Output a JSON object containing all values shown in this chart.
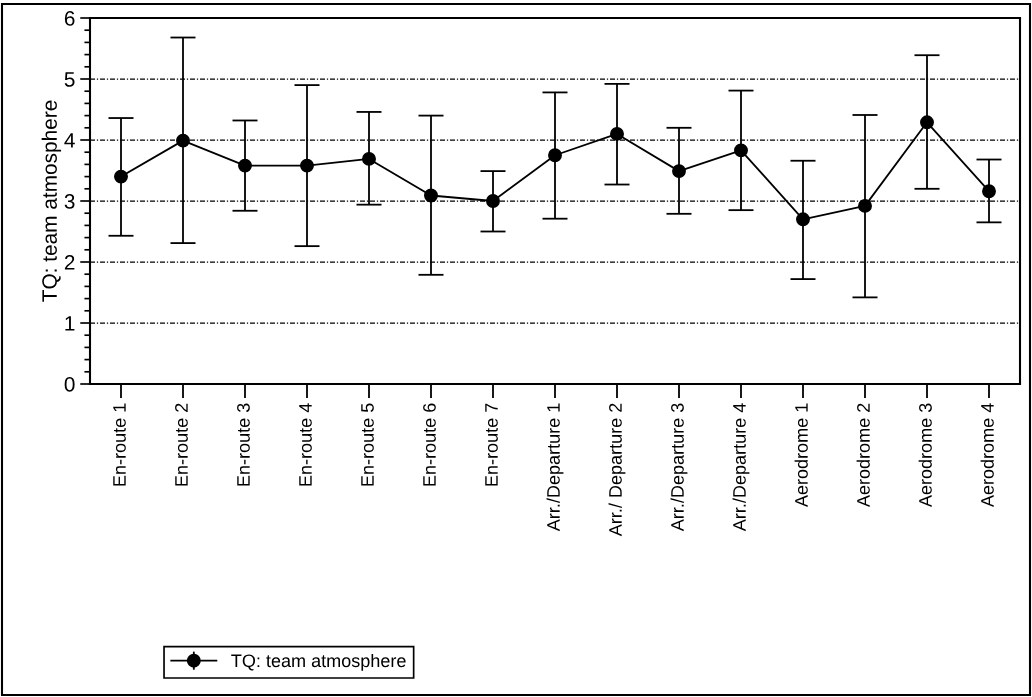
{
  "chart_data": {
    "type": "line",
    "ylabel": "TQ: team atmosphere",
    "categories": [
      "En-route 1",
      "En-route 2",
      "En-route 3",
      "En-route 4",
      "En-route 5",
      "En-route 6",
      "En-route 7",
      "Arr./Departure 1",
      "Arr./ Departure 2",
      "Arr./Departure 3",
      "Arr./Departure 4",
      "Aerodrome 1",
      "Aerodrome 2",
      "Aerodrome 3",
      "Aerodrome 4"
    ],
    "series": [
      {
        "name": "TQ: team atmosphere",
        "color": "#000000",
        "values": [
          3.4,
          3.99,
          3.58,
          3.58,
          3.69,
          3.09,
          3.0,
          3.75,
          4.1,
          3.49,
          3.83,
          2.7,
          2.92,
          4.29,
          3.16
        ],
        "errors": [
          [
            2.43,
            4.36
          ],
          [
            2.31,
            5.68
          ],
          [
            2.84,
            4.32
          ],
          [
            2.26,
            4.9
          ],
          [
            2.94,
            4.46
          ],
          [
            1.79,
            4.4
          ],
          [
            2.5,
            3.49
          ],
          [
            2.71,
            4.78
          ],
          [
            3.27,
            4.92
          ],
          [
            2.79,
            4.2
          ],
          [
            2.85,
            4.81
          ],
          [
            1.72,
            3.66
          ],
          [
            1.42,
            4.41
          ],
          [
            3.2,
            5.39
          ],
          [
            2.65,
            3.68
          ]
        ]
      }
    ],
    "ylim": [
      0,
      6
    ],
    "yticks": [
      0,
      1,
      2,
      3,
      4,
      5,
      6
    ],
    "grid": "y",
    "legend": "bottom left",
    "marker": "circle",
    "line_style": "solid"
  }
}
